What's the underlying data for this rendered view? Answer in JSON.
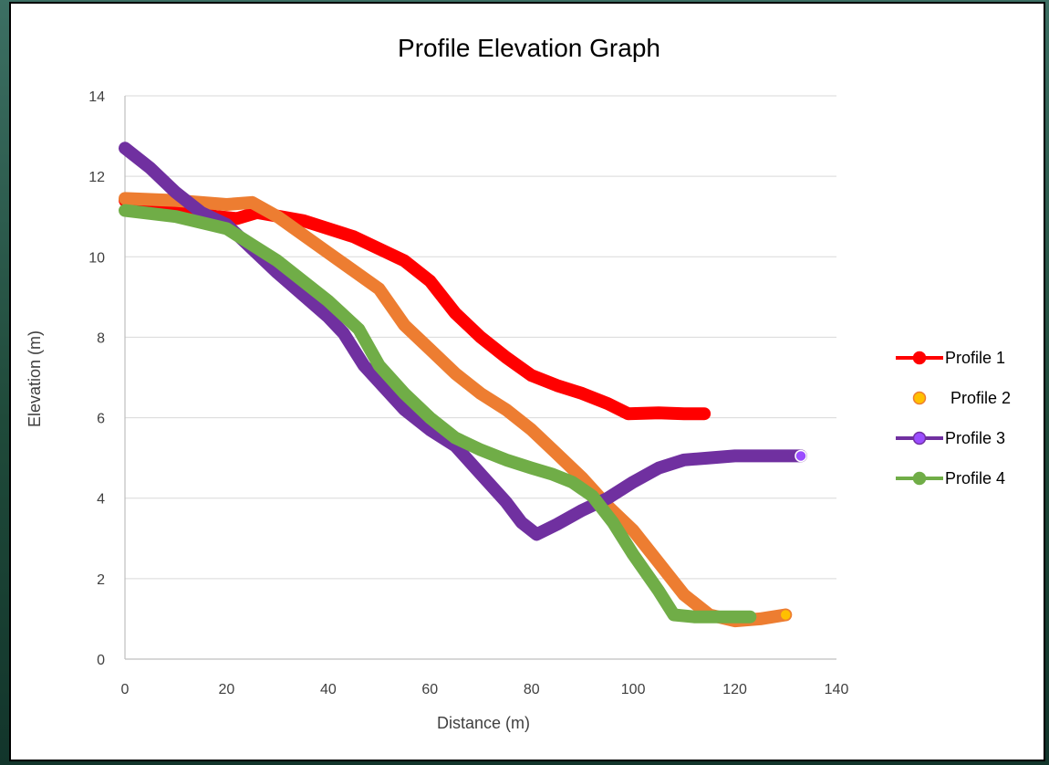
{
  "chart_data": {
    "type": "line",
    "title": "Profile Elevation Graph",
    "xlabel": "Distance (m)",
    "ylabel": "Elevation (m)",
    "xlim": [
      0,
      140
    ],
    "ylim": [
      0,
      14
    ],
    "x_ticks": [
      "0",
      "20",
      "40",
      "60",
      "80",
      "100",
      "120",
      "140"
    ],
    "y_ticks": [
      "0",
      "2",
      "4",
      "6",
      "8",
      "10",
      "12",
      "14"
    ],
    "grid": true,
    "legend_position": "right",
    "series": [
      {
        "name": "Profile 1",
        "color": "#ff0000",
        "x": [
          0,
          10,
          18,
          22,
          26,
          35,
          45,
          55,
          60,
          65,
          70,
          75,
          80,
          85,
          90,
          95,
          99,
          105,
          110,
          114
        ],
        "y": [
          11.4,
          11.2,
          11.0,
          10.95,
          11.1,
          10.9,
          10.5,
          9.9,
          9.4,
          8.6,
          8.0,
          7.5,
          7.05,
          6.8,
          6.6,
          6.35,
          6.1,
          6.12,
          6.1,
          6.1
        ]
      },
      {
        "name": "Profile 2",
        "color": "#ed7d31",
        "x": [
          0,
          10,
          20,
          25,
          30,
          40,
          50,
          55,
          60,
          65,
          70,
          75,
          80,
          85,
          90,
          95,
          100,
          105,
          110,
          115,
          120,
          125,
          130
        ],
        "y": [
          11.45,
          11.4,
          11.3,
          11.35,
          11.0,
          10.1,
          9.2,
          8.3,
          7.7,
          7.1,
          6.6,
          6.2,
          5.7,
          5.1,
          4.5,
          3.8,
          3.2,
          2.4,
          1.6,
          1.1,
          0.95,
          1.0,
          1.1
        ]
      },
      {
        "name": "Profile 3",
        "color": "#7030a0",
        "x": [
          0,
          5,
          10,
          15,
          20,
          30,
          40,
          43,
          47,
          55,
          60,
          65,
          70,
          75,
          78,
          81,
          85,
          90,
          95,
          100,
          105,
          110,
          115,
          120,
          125,
          133
        ],
        "y": [
          12.7,
          12.2,
          11.6,
          11.1,
          10.8,
          9.6,
          8.5,
          8.1,
          7.3,
          6.2,
          5.7,
          5.3,
          4.6,
          3.9,
          3.4,
          3.1,
          3.35,
          3.7,
          4.0,
          4.4,
          4.75,
          4.95,
          5.0,
          5.05,
          5.05,
          5.05
        ]
      },
      {
        "name": "Profile 4",
        "color": "#70ad47",
        "x": [
          0,
          10,
          20,
          25,
          30,
          40,
          46,
          50,
          55,
          60,
          65,
          70,
          75,
          80,
          84,
          88,
          92,
          96,
          100,
          105,
          108,
          112,
          118,
          123
        ],
        "y": [
          11.15,
          11.0,
          10.7,
          10.3,
          9.9,
          8.9,
          8.2,
          7.3,
          6.6,
          6.0,
          5.5,
          5.2,
          4.95,
          4.75,
          4.6,
          4.4,
          4.05,
          3.4,
          2.6,
          1.7,
          1.1,
          1.05,
          1.05,
          1.05
        ]
      }
    ]
  }
}
